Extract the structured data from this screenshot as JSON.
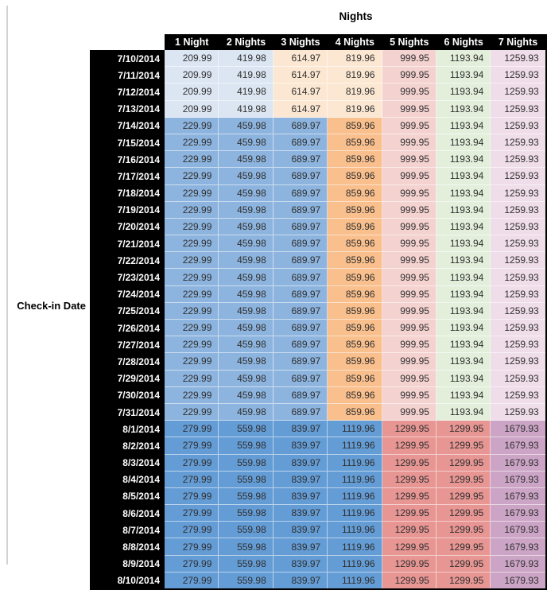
{
  "chart_data": {
    "type": "table",
    "title": "Nights",
    "row_header_label": "Check-in Date",
    "columns": [
      "1 Night",
      "2 Nights",
      "3 Nights",
      "4 Nights",
      "5 Nights",
      "6 Nights",
      "7 Nights"
    ],
    "rows": [
      {
        "date": "7/10/2014",
        "band": "early",
        "values": [
          "209.99",
          "419.98",
          "614.97",
          "819.96",
          "999.95",
          "1193.94",
          "1259.93"
        ]
      },
      {
        "date": "7/11/2014",
        "band": "early",
        "values": [
          "209.99",
          "419.98",
          "614.97",
          "819.96",
          "999.95",
          "1193.94",
          "1259.93"
        ]
      },
      {
        "date": "7/12/2014",
        "band": "early",
        "values": [
          "209.99",
          "419.98",
          "614.97",
          "819.96",
          "999.95",
          "1193.94",
          "1259.93"
        ]
      },
      {
        "date": "7/13/2014",
        "band": "early",
        "values": [
          "209.99",
          "419.98",
          "614.97",
          "819.96",
          "999.95",
          "1193.94",
          "1259.93"
        ]
      },
      {
        "date": "7/14/2014",
        "band": "mid",
        "values": [
          "229.99",
          "459.98",
          "689.97",
          "859.96",
          "999.95",
          "1193.94",
          "1259.93"
        ]
      },
      {
        "date": "7/15/2014",
        "band": "mid",
        "values": [
          "229.99",
          "459.98",
          "689.97",
          "859.96",
          "999.95",
          "1193.94",
          "1259.93"
        ]
      },
      {
        "date": "7/16/2014",
        "band": "mid",
        "values": [
          "229.99",
          "459.98",
          "689.97",
          "859.96",
          "999.95",
          "1193.94",
          "1259.93"
        ]
      },
      {
        "date": "7/17/2014",
        "band": "mid",
        "values": [
          "229.99",
          "459.98",
          "689.97",
          "859.96",
          "999.95",
          "1193.94",
          "1259.93"
        ]
      },
      {
        "date": "7/18/2014",
        "band": "mid",
        "values": [
          "229.99",
          "459.98",
          "689.97",
          "859.96",
          "999.95",
          "1193.94",
          "1259.93"
        ]
      },
      {
        "date": "7/19/2014",
        "band": "mid",
        "values": [
          "229.99",
          "459.98",
          "689.97",
          "859.96",
          "999.95",
          "1193.94",
          "1259.93"
        ]
      },
      {
        "date": "7/20/2014",
        "band": "mid",
        "values": [
          "229.99",
          "459.98",
          "689.97",
          "859.96",
          "999.95",
          "1193.94",
          "1259.93"
        ]
      },
      {
        "date": "7/21/2014",
        "band": "mid",
        "values": [
          "229.99",
          "459.98",
          "689.97",
          "859.96",
          "999.95",
          "1193.94",
          "1259.93"
        ]
      },
      {
        "date": "7/22/2014",
        "band": "mid",
        "values": [
          "229.99",
          "459.98",
          "689.97",
          "859.96",
          "999.95",
          "1193.94",
          "1259.93"
        ]
      },
      {
        "date": "7/23/2014",
        "band": "mid",
        "values": [
          "229.99",
          "459.98",
          "689.97",
          "859.96",
          "999.95",
          "1193.94",
          "1259.93"
        ]
      },
      {
        "date": "7/24/2014",
        "band": "mid",
        "values": [
          "229.99",
          "459.98",
          "689.97",
          "859.96",
          "999.95",
          "1193.94",
          "1259.93"
        ]
      },
      {
        "date": "7/25/2014",
        "band": "mid",
        "values": [
          "229.99",
          "459.98",
          "689.97",
          "859.96",
          "999.95",
          "1193.94",
          "1259.93"
        ]
      },
      {
        "date": "7/26/2014",
        "band": "mid",
        "values": [
          "229.99",
          "459.98",
          "689.97",
          "859.96",
          "999.95",
          "1193.94",
          "1259.93"
        ]
      },
      {
        "date": "7/27/2014",
        "band": "mid",
        "values": [
          "229.99",
          "459.98",
          "689.97",
          "859.96",
          "999.95",
          "1193.94",
          "1259.93"
        ]
      },
      {
        "date": "7/28/2014",
        "band": "mid",
        "values": [
          "229.99",
          "459.98",
          "689.97",
          "859.96",
          "999.95",
          "1193.94",
          "1259.93"
        ]
      },
      {
        "date": "7/29/2014",
        "band": "mid",
        "values": [
          "229.99",
          "459.98",
          "689.97",
          "859.96",
          "999.95",
          "1193.94",
          "1259.93"
        ]
      },
      {
        "date": "7/30/2014",
        "band": "mid",
        "values": [
          "229.99",
          "459.98",
          "689.97",
          "859.96",
          "999.95",
          "1193.94",
          "1259.93"
        ]
      },
      {
        "date": "7/31/2014",
        "band": "mid",
        "values": [
          "229.99",
          "459.98",
          "689.97",
          "859.96",
          "999.95",
          "1193.94",
          "1259.93"
        ]
      },
      {
        "date": "8/1/2014",
        "band": "peak",
        "values": [
          "279.99",
          "559.98",
          "839.97",
          "1119.96",
          "1299.95",
          "1299.95",
          "1679.93"
        ]
      },
      {
        "date": "8/2/2014",
        "band": "peak",
        "values": [
          "279.99",
          "559.98",
          "839.97",
          "1119.96",
          "1299.95",
          "1299.95",
          "1679.93"
        ]
      },
      {
        "date": "8/3/2014",
        "band": "peak",
        "values": [
          "279.99",
          "559.98",
          "839.97",
          "1119.96",
          "1299.95",
          "1299.95",
          "1679.93"
        ]
      },
      {
        "date": "8/4/2014",
        "band": "peak",
        "values": [
          "279.99",
          "559.98",
          "839.97",
          "1119.96",
          "1299.95",
          "1299.95",
          "1679.93"
        ]
      },
      {
        "date": "8/5/2014",
        "band": "peak",
        "values": [
          "279.99",
          "559.98",
          "839.97",
          "1119.96",
          "1299.95",
          "1299.95",
          "1679.93"
        ]
      },
      {
        "date": "8/6/2014",
        "band": "peak",
        "values": [
          "279.99",
          "559.98",
          "839.97",
          "1119.96",
          "1299.95",
          "1299.95",
          "1679.93"
        ]
      },
      {
        "date": "8/7/2014",
        "band": "peak",
        "values": [
          "279.99",
          "559.98",
          "839.97",
          "1119.96",
          "1299.95",
          "1299.95",
          "1679.93"
        ]
      },
      {
        "date": "8/8/2014",
        "band": "peak",
        "values": [
          "279.99",
          "559.98",
          "839.97",
          "1119.96",
          "1299.95",
          "1299.95",
          "1679.93"
        ]
      },
      {
        "date": "8/9/2014",
        "band": "peak",
        "values": [
          "279.99",
          "559.98",
          "839.97",
          "1119.96",
          "1299.95",
          "1299.95",
          "1679.93"
        ]
      },
      {
        "date": "8/10/2014",
        "band": "peak",
        "values": [
          "279.99",
          "559.98",
          "839.97",
          "1119.96",
          "1299.95",
          "1299.95",
          "1679.93"
        ]
      }
    ],
    "band_styles": {
      "early": [
        "blue-light",
        "blue-light",
        "tan-light",
        "tan-light",
        "red-light",
        "green-light",
        "purple-light"
      ],
      "mid": [
        "blue-mid",
        "blue-mid",
        "blue-mid",
        "orange-mid",
        "red-light",
        "green-light",
        "purple-light"
      ],
      "peak": [
        "blue-deep",
        "blue-deep",
        "blue-deep",
        "blue-deep",
        "red-mid",
        "red-mid",
        "purple-mid"
      ]
    },
    "palette": {
      "blue-light": "#dce6f2",
      "tan-light": "#fce8d2",
      "red-light": "#f4d2d0",
      "green-light": "#e3efdb",
      "purple-light": "#efdde9",
      "blue-mid": "#8db4de",
      "orange-mid": "#f9bf8c",
      "blue-deep": "#649cd5",
      "red-mid": "#e79693",
      "purple-mid": "#cca5c6"
    },
    "header_bg": "#000000",
    "header_text_color": "#ffffff",
    "value_text_color": "#303030"
  }
}
